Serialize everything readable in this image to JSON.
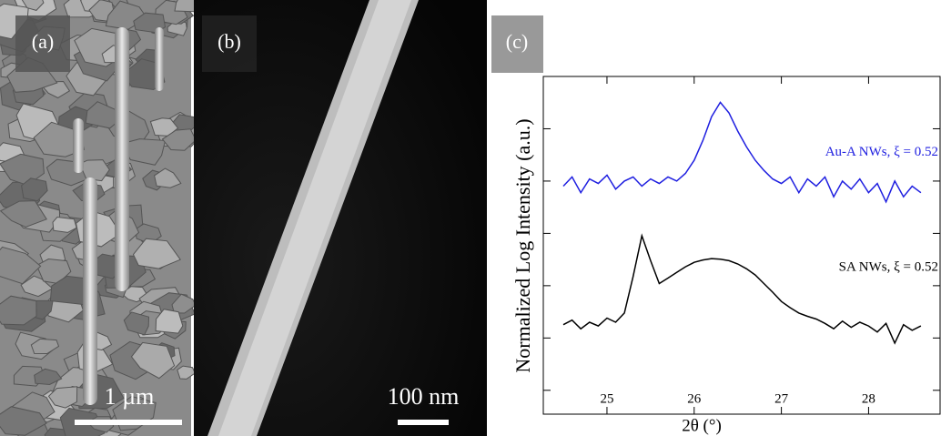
{
  "panels": [
    {
      "label": "(a)",
      "scale_bar": "1 µm"
    },
    {
      "label": "(b)",
      "scale_bar": "100 nm"
    }
  ],
  "chart_data": {
    "type": "line",
    "panel_label": "(c)",
    "xlabel": "2θ (°)",
    "ylabel": "Normalized Log Intensity (a.u.)",
    "xlim": [
      24.27,
      28.82
    ],
    "xticks": [
      25,
      26,
      27,
      28
    ],
    "ylim": [
      3.5e-07,
      1
    ],
    "yticks": [
      1e-06,
      1e-05,
      0.0001,
      0.001,
      0.01,
      0.1
    ],
    "log_y": true,
    "x": [
      24.5,
      24.6,
      24.7,
      24.8,
      24.9,
      25.0,
      25.1,
      25.2,
      25.3,
      25.4,
      25.5,
      25.6,
      25.7,
      25.8,
      25.9,
      26.0,
      26.1,
      26.2,
      26.3,
      26.4,
      26.5,
      26.6,
      26.7,
      26.8,
      26.9,
      27.0,
      27.1,
      27.2,
      27.3,
      27.4,
      27.5,
      27.6,
      27.7,
      27.8,
      27.9,
      28.0,
      28.1,
      28.2,
      28.3,
      28.4,
      28.5,
      28.6
    ],
    "series": [
      {
        "name": "Au-A NWs, ξ = 0.52",
        "color": "#1f1fe0",
        "values": [
          0.008,
          0.012,
          0.006,
          0.011,
          0.009,
          0.013,
          0.007,
          0.01,
          0.012,
          0.008,
          0.011,
          0.009,
          0.012,
          0.01,
          0.014,
          0.025,
          0.06,
          0.17,
          0.32,
          0.2,
          0.09,
          0.045,
          0.025,
          0.016,
          0.011,
          0.009,
          0.012,
          0.006,
          0.011,
          0.008,
          0.012,
          0.005,
          0.01,
          0.007,
          0.011,
          0.006,
          0.009,
          0.004,
          0.01,
          0.005,
          0.008,
          0.006
        ]
      },
      {
        "name": "SA NWs, ξ = 0.52",
        "color": "#000000",
        "values": [
          1.8e-05,
          2.2e-05,
          1.5e-05,
          2e-05,
          1.7e-05,
          2.4e-05,
          2e-05,
          3e-05,
          0.00015,
          0.0009,
          0.0003,
          0.00011,
          0.00014,
          0.00018,
          0.00023,
          0.00028,
          0.00031,
          0.00033,
          0.00032,
          0.0003,
          0.00026,
          0.00021,
          0.00016,
          0.00011,
          7.5e-05,
          5e-05,
          3.8e-05,
          3e-05,
          2.6e-05,
          2.3e-05,
          1.9e-05,
          1.5e-05,
          2.1e-05,
          1.6e-05,
          2e-05,
          1.7e-05,
          1.3e-05,
          1.9e-05,
          8e-06,
          1.8e-05,
          1.4e-05,
          1.7e-05
        ]
      }
    ]
  }
}
